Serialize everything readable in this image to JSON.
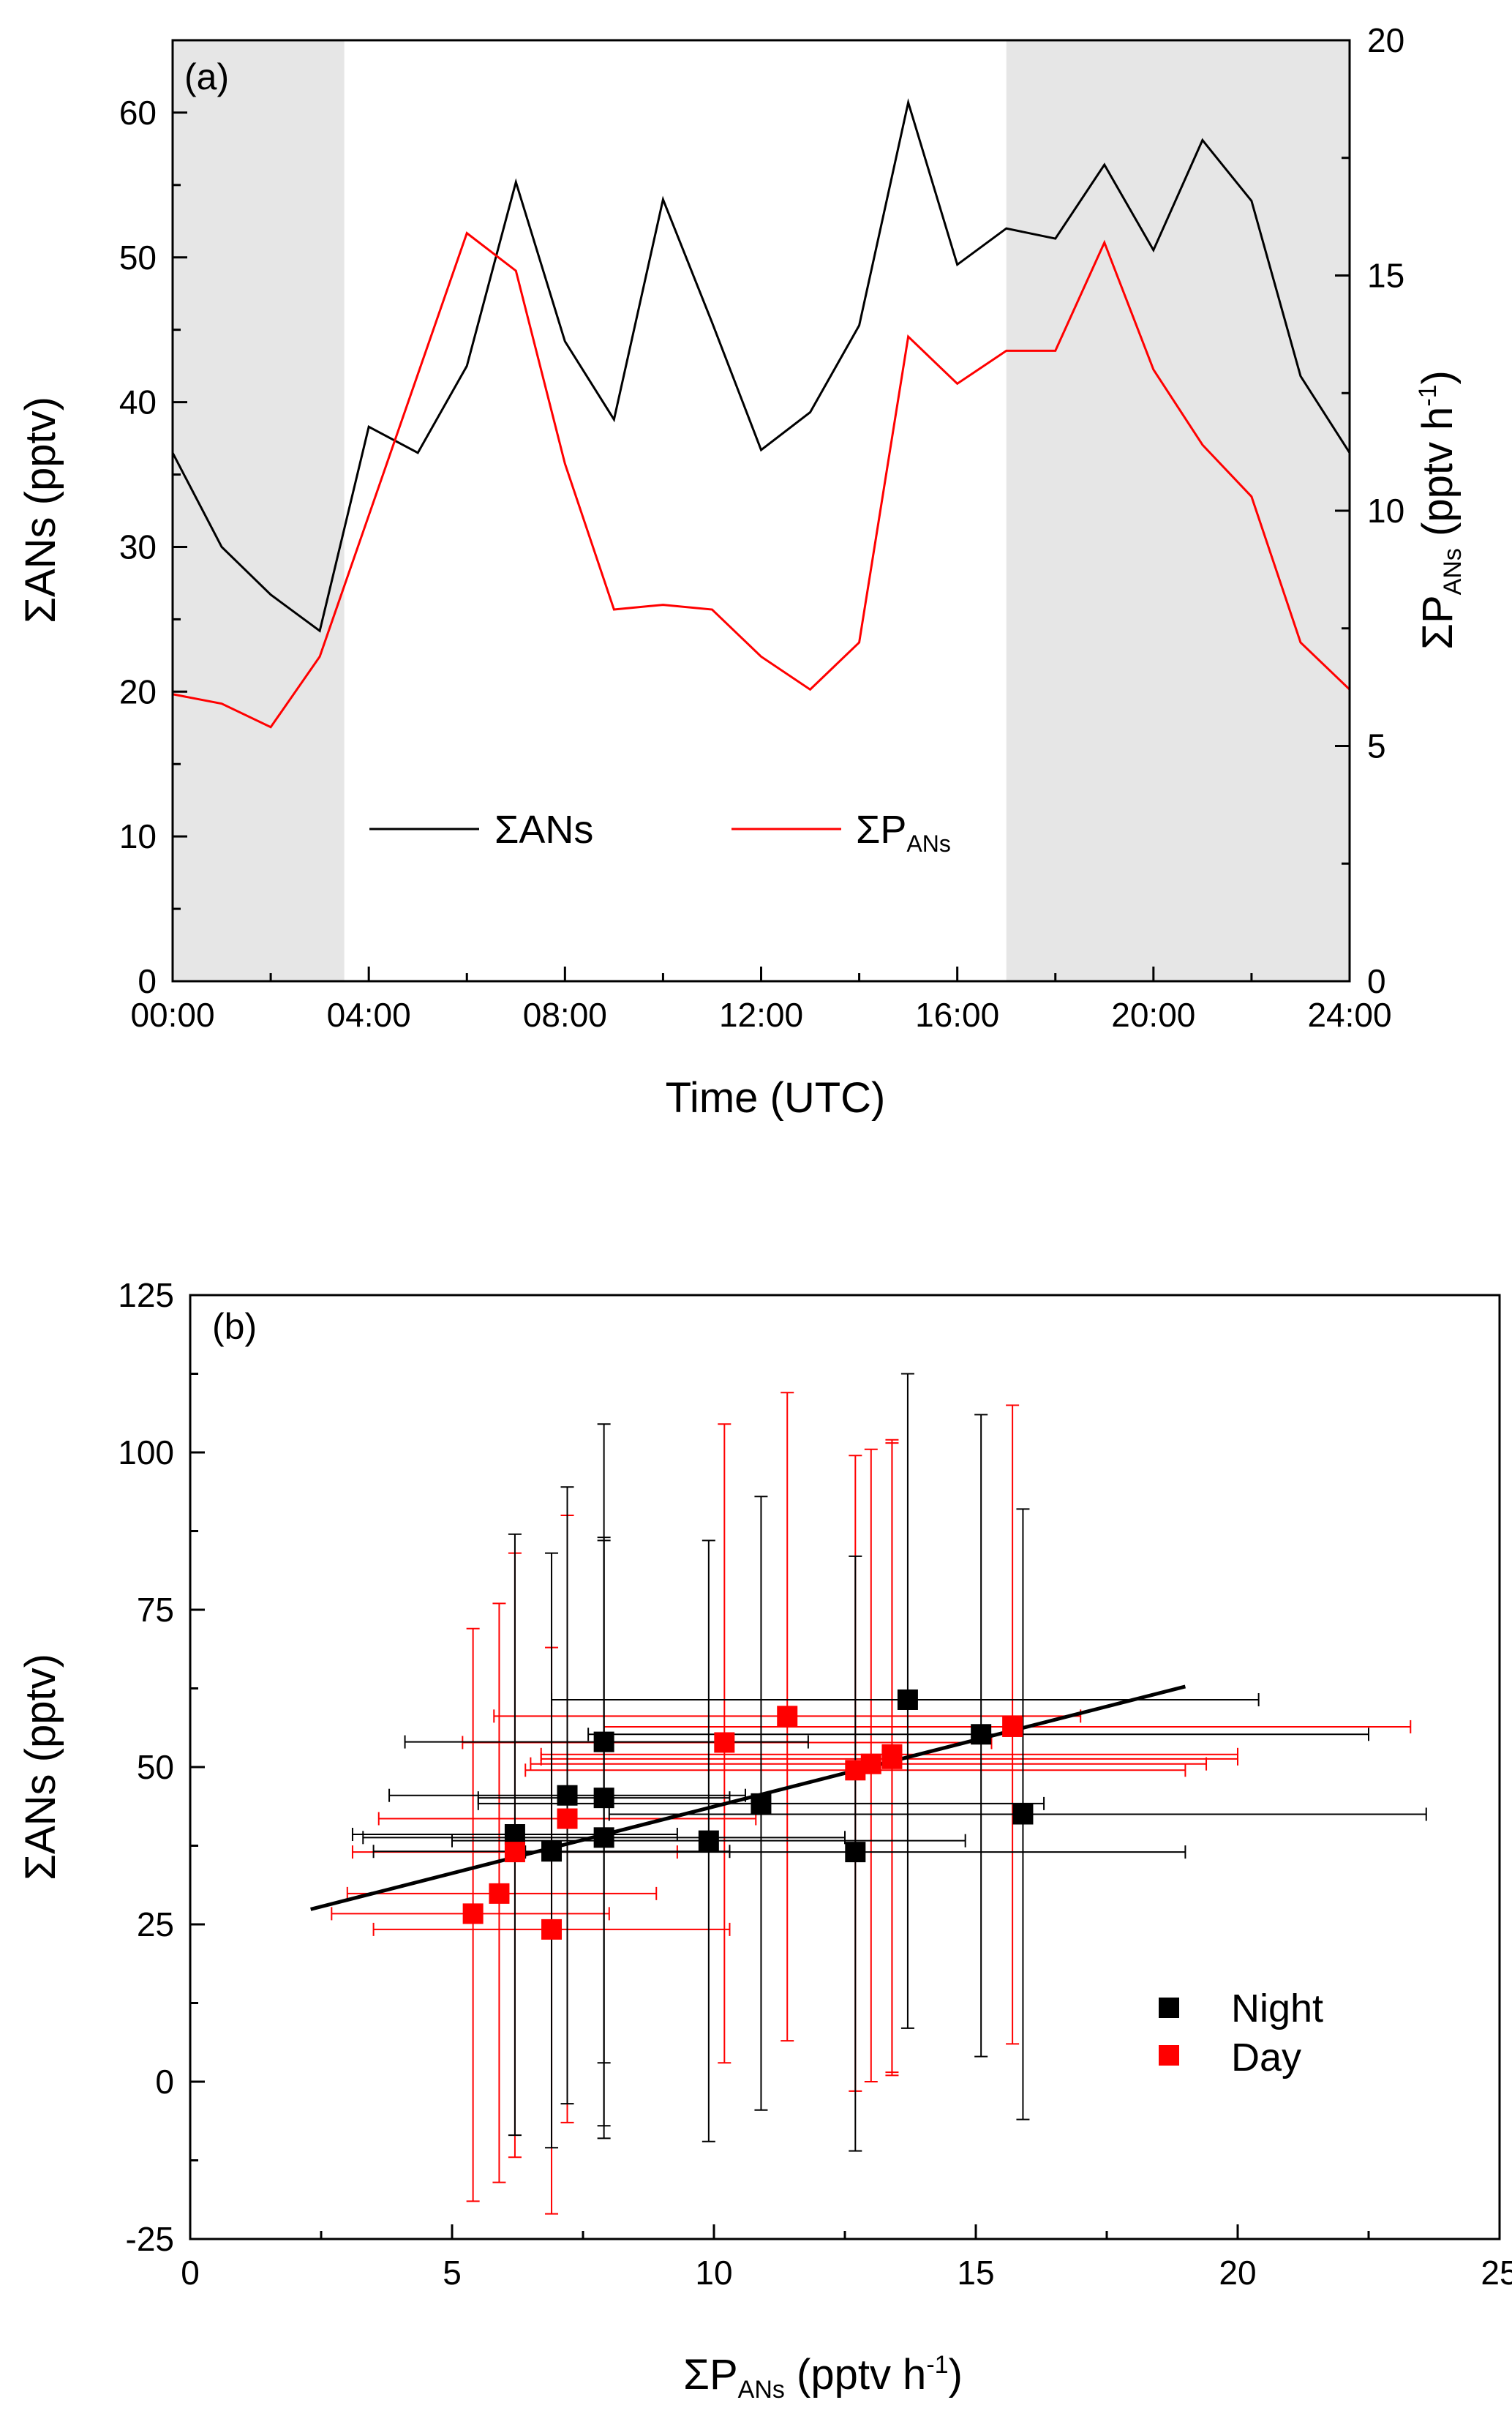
{
  "chart_data": [
    {
      "panel": "(a)",
      "type": "line",
      "xlabel": "Time (UTC)",
      "ylabel": "ΣANs (pptv)",
      "y2label": {
        "main": "ΣP",
        "sub": "ANs",
        "rest": " (pptv h",
        "sup": "-1",
        "close": ")"
      },
      "xlim": [
        0,
        24
      ],
      "ylim": [
        0,
        65
      ],
      "y2lim": [
        0,
        20
      ],
      "x_tick_labels": [
        "00:00",
        "04:00",
        "08:00",
        "12:00",
        "16:00",
        "20:00",
        "24:00"
      ],
      "y_tick_labels": [
        "0",
        "10",
        "20",
        "30",
        "40",
        "50",
        "60"
      ],
      "y2_tick_labels": [
        "0",
        "5",
        "10",
        "15",
        "20"
      ],
      "shaded_intervals": [
        [
          0,
          3.5
        ],
        [
          17,
          24
        ]
      ],
      "shade_color": "#e6e6e6",
      "legend": [
        {
          "label": "ΣANs",
          "color": "#000000"
        },
        {
          "label_main": "ΣP",
          "label_sub": "ANs",
          "color": "#ff0000"
        }
      ],
      "series": [
        {
          "name": "ΣANs",
          "axis": "left",
          "color": "#000000",
          "x": [
            0,
            1,
            2,
            3,
            4,
            5,
            6,
            7,
            8,
            9,
            10,
            11,
            12,
            13,
            14,
            15,
            16,
            17,
            18,
            19,
            20,
            21,
            22,
            23,
            24
          ],
          "y": [
            36.5,
            30,
            26.7,
            24.2,
            38.3,
            36.5,
            42.5,
            55.2,
            44.2,
            38.8,
            54.0,
            45.5,
            36.7,
            39.3,
            45.3,
            60.7,
            49.5,
            52.0,
            51.3,
            56.4,
            50.5,
            58.1,
            53.9,
            41.8,
            36.5
          ]
        },
        {
          "name": "ΣP_ANs",
          "axis": "right",
          "color": "#ff0000",
          "x": [
            0,
            1,
            2,
            3,
            4,
            5,
            6,
            7,
            8,
            9,
            10,
            11,
            12,
            13,
            14,
            15,
            16,
            17,
            18,
            19,
            20,
            21,
            22,
            23,
            24
          ],
          "y": [
            6.1,
            5.9,
            5.4,
            6.9,
            9.9,
            12.9,
            15.9,
            15.1,
            11.0,
            7.9,
            8.0,
            7.9,
            6.9,
            6.2,
            7.2,
            13.7,
            12.7,
            13.4,
            13.4,
            15.7,
            13.0,
            11.4,
            10.3,
            7.2,
            6.2
          ]
        }
      ]
    },
    {
      "panel": "(b)",
      "type": "scatter",
      "xlabel": {
        "main": "ΣP",
        "sub": "ANs",
        "rest": " (pptv h",
        "sup": "-1",
        "close": ")"
      },
      "ylabel": "ΣANs (pptv)",
      "xlim": [
        0,
        25
      ],
      "ylim": [
        -25,
        125
      ],
      "x_tick_labels": [
        "0",
        "5",
        "10",
        "15",
        "20",
        "25"
      ],
      "y_tick_labels": [
        "-25",
        "0",
        "25",
        "50",
        "75",
        "100",
        "125"
      ],
      "legend": [
        {
          "label": "Night",
          "color": "#000000"
        },
        {
          "label": "Day",
          "color": "#ff0000"
        }
      ],
      "fit_line": {
        "x": [
          2.3,
          19.0
        ],
        "y": [
          27.4,
          62.8
        ],
        "color": "#000000"
      },
      "series": [
        {
          "name": "Night",
          "color": "#000000",
          "points": [
            {
              "x": 6.2,
              "y": 39.3,
              "xerr_lo": 3.1,
              "xerr_hi": 9.3,
              "yerr_lo": -8.5,
              "yerr_hi": 87.0
            },
            {
              "x": 6.9,
              "y": 36.6,
              "xerr_lo": 3.5,
              "xerr_hi": 10.3,
              "yerr_lo": -10.5,
              "yerr_hi": 84.0
            },
            {
              "x": 7.2,
              "y": 45.5,
              "xerr_lo": 3.8,
              "xerr_hi": 10.6,
              "yerr_lo": -3.5,
              "yerr_hi": 94.5
            },
            {
              "x": 7.9,
              "y": 54.0,
              "xerr_lo": 4.1,
              "xerr_hi": 11.8,
              "yerr_lo": 3.0,
              "yerr_hi": 104.5
            },
            {
              "x": 7.9,
              "y": 45.1,
              "xerr_lo": 5.5,
              "xerr_hi": 10.3,
              "yerr_lo": -7.0,
              "yerr_hi": 86.5
            },
            {
              "x": 7.9,
              "y": 38.8,
              "xerr_lo": 3.3,
              "xerr_hi": 12.5,
              "yerr_lo": -9.0,
              "yerr_hi": 86.0
            },
            {
              "x": 9.9,
              "y": 38.3,
              "xerr_lo": 5.0,
              "xerr_hi": 14.8,
              "yerr_lo": -9.5,
              "yerr_hi": 86.0
            },
            {
              "x": 10.9,
              "y": 44.2,
              "xerr_lo": 5.5,
              "xerr_hi": 16.3,
              "yerr_lo": -4.5,
              "yerr_hi": 93.0
            },
            {
              "x": 12.7,
              "y": 36.5,
              "xerr_lo": 6.4,
              "xerr_hi": 19.0,
              "yerr_lo": -11.0,
              "yerr_hi": 83.5
            },
            {
              "x": 13.7,
              "y": 60.7,
              "xerr_lo": 6.9,
              "xerr_hi": 20.4,
              "yerr_lo": 8.5,
              "yerr_hi": 112.5
            },
            {
              "x": 15.1,
              "y": 55.2,
              "xerr_lo": 7.6,
              "xerr_hi": 22.5,
              "yerr_lo": 4.0,
              "yerr_hi": 106.0
            },
            {
              "x": 15.9,
              "y": 42.5,
              "xerr_lo": 8.0,
              "xerr_hi": 23.6,
              "yerr_lo": -6.0,
              "yerr_hi": 91.0
            }
          ]
        },
        {
          "name": "Day",
          "color": "#ff0000",
          "points": [
            {
              "x": 5.4,
              "y": 26.7,
              "xerr_lo": 2.7,
              "xerr_hi": 8.0,
              "yerr_lo": -19.0,
              "yerr_hi": 72.0
            },
            {
              "x": 5.9,
              "y": 29.9,
              "xerr_lo": 3.0,
              "xerr_hi": 8.9,
              "yerr_lo": -16.0,
              "yerr_hi": 76.0
            },
            {
              "x": 6.2,
              "y": 36.5,
              "xerr_lo": 3.1,
              "xerr_hi": 9.3,
              "yerr_lo": -12.0,
              "yerr_hi": 84.0
            },
            {
              "x": 6.9,
              "y": 24.2,
              "xerr_lo": 3.5,
              "xerr_hi": 10.3,
              "yerr_lo": -21.0,
              "yerr_hi": 69.0
            },
            {
              "x": 7.2,
              "y": 41.8,
              "xerr_lo": 3.6,
              "xerr_hi": 10.8,
              "yerr_lo": -6.5,
              "yerr_hi": 90.0
            },
            {
              "x": 10.2,
              "y": 53.9,
              "xerr_lo": 5.2,
              "xerr_hi": 15.3,
              "yerr_lo": 3.0,
              "yerr_hi": 104.5
            },
            {
              "x": 11.4,
              "y": 58.1,
              "xerr_lo": 5.8,
              "xerr_hi": 17.0,
              "yerr_lo": 6.5,
              "yerr_hi": 109.5
            },
            {
              "x": 12.7,
              "y": 49.5,
              "xerr_lo": 6.4,
              "xerr_hi": 19.0,
              "yerr_lo": -1.5,
              "yerr_hi": 99.5
            },
            {
              "x": 13.0,
              "y": 50.5,
              "xerr_lo": 6.5,
              "xerr_hi": 19.4,
              "yerr_lo": 0.0,
              "yerr_hi": 100.5
            },
            {
              "x": 13.4,
              "y": 52.0,
              "xerr_lo": 6.7,
              "xerr_hi": 20.0,
              "yerr_lo": 1.5,
              "yerr_hi": 102.0
            },
            {
              "x": 13.4,
              "y": 51.3,
              "xerr_lo": 6.7,
              "xerr_hi": 20.0,
              "yerr_lo": 1.0,
              "yerr_hi": 101.5
            },
            {
              "x": 15.7,
              "y": 56.4,
              "xerr_lo": 7.9,
              "xerr_hi": 23.3,
              "yerr_lo": 6.0,
              "yerr_hi": 107.5
            }
          ]
        }
      ]
    }
  ]
}
